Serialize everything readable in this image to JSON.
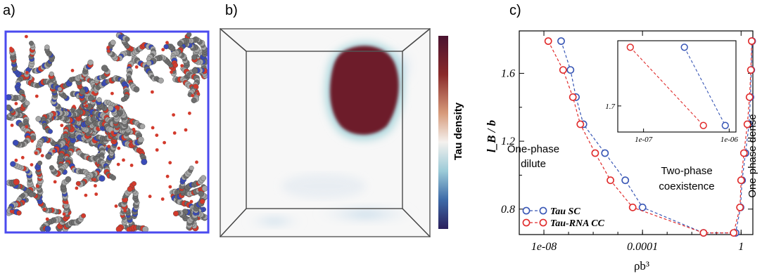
{
  "panels": {
    "a": {
      "label": "a)"
    },
    "b": {
      "label": "b)",
      "colorbar_label": "Tau density"
    },
    "c": {
      "label": "c)"
    }
  },
  "colors": {
    "box_border": "#4b4bef",
    "bead_gray": "#8a8a8a",
    "bead_red": "#d33a2c",
    "bead_blue": "#3a4bb8",
    "density_high": "#6b1d2a",
    "density_mid": "#f4f1ee",
    "density_low": "#2a1f5c",
    "series_sc": "#3856b5",
    "series_cc": "#e02b2b"
  },
  "chart_data": {
    "type": "line",
    "xscale": "log",
    "xlim": [
      1e-09,
      3
    ],
    "ylim": [
      0.65,
      1.85
    ],
    "xlabel": "ρb³",
    "ylabel": "l_B / b",
    "xticks": [
      "1e-08",
      "0.0001",
      "1"
    ],
    "xtick_values": [
      1e-08,
      0.0001,
      1
    ],
    "yticks": [
      "0.8",
      "1.2",
      "1.6"
    ],
    "ytick_values": [
      0.8,
      1.2,
      1.6
    ],
    "legend_position": "bottom-left",
    "annotations": {
      "dilute_line1": "One-phase",
      "dilute_line2": "dilute",
      "coex_line1": "Two-phase",
      "coex_line2": "coexistence",
      "dense": "One-phase dense"
    },
    "series": [
      {
        "name": "Tau SC",
        "color": "#3856b5",
        "points": [
          [
            5e-08,
            1.79
          ],
          [
            1.2e-07,
            1.62
          ],
          [
            2e-07,
            1.46
          ],
          [
            4e-07,
            1.3
          ],
          [
            3e-06,
            1.13
          ],
          [
            2e-05,
            0.97
          ],
          [
            0.0001,
            0.81
          ],
          [
            0.03,
            0.66
          ],
          [
            0.6,
            0.66
          ],
          [
            0.95,
            0.81
          ],
          [
            1.1,
            0.97
          ],
          [
            1.5,
            1.13
          ],
          [
            2.1,
            1.3
          ],
          [
            2.4,
            1.46
          ],
          [
            2.6,
            1.62
          ],
          [
            2.8,
            1.79
          ]
        ]
      },
      {
        "name": "Tau-RNA CC",
        "color": "#e02b2b",
        "points": [
          [
            1.5e-08,
            1.79
          ],
          [
            6e-08,
            1.62
          ],
          [
            1.5e-07,
            1.46
          ],
          [
            3e-07,
            1.3
          ],
          [
            1.2e-06,
            1.13
          ],
          [
            5e-06,
            0.97
          ],
          [
            4e-05,
            0.81
          ],
          [
            0.03,
            0.66
          ],
          [
            0.5,
            0.66
          ],
          [
            0.9,
            0.81
          ],
          [
            1.0,
            0.97
          ],
          [
            1.3,
            1.13
          ],
          [
            1.8,
            1.3
          ],
          [
            2.2,
            1.46
          ],
          [
            2.5,
            1.62
          ],
          [
            2.7,
            1.79
          ]
        ]
      }
    ],
    "inset": {
      "xscale": "log",
      "xlim": [
        5e-08,
        1.2e-06
      ],
      "ylim": [
        1.66,
        1.8
      ],
      "xticks": [
        "1e-07",
        "1e-06"
      ],
      "xtick_values": [
        1e-07,
        1e-06
      ],
      "yticks": [
        "1.7"
      ],
      "ytick_values": [
        1.7
      ],
      "series": [
        {
          "name": "Tau SC",
          "color": "#3856b5",
          "points": [
            [
              3e-07,
              1.79
            ],
            [
              9e-07,
              1.67
            ]
          ]
        },
        {
          "name": "Tau-RNA CC",
          "color": "#e02b2b",
          "points": [
            [
              7e-08,
              1.79
            ],
            [
              5e-07,
              1.67
            ]
          ]
        }
      ]
    }
  }
}
